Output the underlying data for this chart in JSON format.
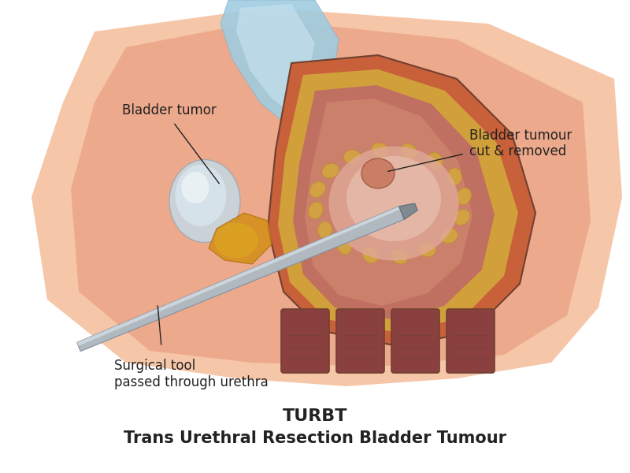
{
  "title_main": "TURBT",
  "title_sub": "Trans Urethral Resection Bladder Tumour",
  "label_bladder_tumor": "Bladder tumor",
  "label_bladder_tumour_cut": "Bladder tumour\ncut & removed",
  "label_surgical_tool": "Surgical tool\npassed through urethra",
  "bg_color": "#ffffff",
  "skin_outer": "#f5c0a0",
  "skin_mid": "#e8967a",
  "skin_inner": "#d4735e",
  "bladder_outer": "#c8603a",
  "bladder_inner": "#e8967a",
  "bladder_yellow": "#d4a83c",
  "bladder_interior": "#c07060",
  "tumor_color": "#d08878",
  "tumor_highlight": "#e0c0b8",
  "tool_color": "#b0b8c0",
  "tool_tip_color": "#808890",
  "blue_structure": "#a0cce0",
  "orange_structure": "#d4901c",
  "muscle_color": "#8b4040",
  "muscle_ridge": "#704030",
  "annotation_color": "#222222",
  "title_fontsize": 16,
  "subtitle_fontsize": 15,
  "label_fontsize": 12
}
